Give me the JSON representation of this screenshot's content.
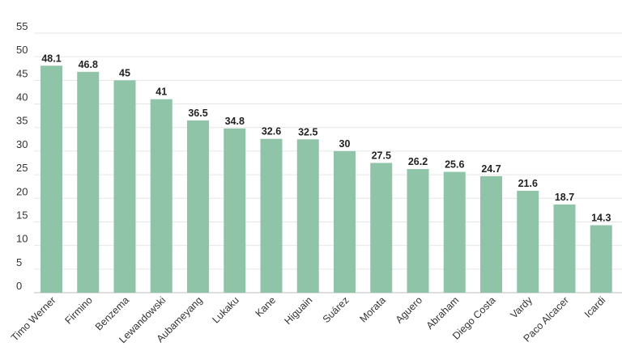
{
  "chart_data": {
    "type": "bar",
    "title": "",
    "xlabel": "",
    "ylabel": "",
    "ylim": [
      0,
      55
    ],
    "yticks": [
      0,
      5,
      10,
      15,
      20,
      25,
      30,
      35,
      40,
      45,
      50,
      55
    ],
    "grid": true,
    "categories": [
      "Timo Werner",
      "Firmino",
      "Benzema",
      "Lewandowski",
      "Aubameyang",
      "Lukaku",
      "Kane",
      "Higuain",
      "Suárez",
      "Morata",
      "Aguero",
      "Abraham",
      "Diego Costa",
      "Vardy",
      "Paco Alcacer",
      "Icardi"
    ],
    "values": [
      48.1,
      46.8,
      45,
      41,
      36.5,
      34.8,
      32.6,
      32.5,
      30,
      27.5,
      26.2,
      25.6,
      24.7,
      21.6,
      18.7,
      14.3
    ],
    "value_labels": [
      "48.1",
      "46.8",
      "45",
      "41",
      "36.5",
      "34.8",
      "32.6",
      "32.5",
      "30",
      "27.5",
      "26.2",
      "25.6",
      "24.7",
      "21.6",
      "18.7",
      "14.3"
    ],
    "colors": {
      "bar": "#8fc4a8",
      "grid": "#e6e6e6",
      "axis": "#bdbdbd",
      "tick_text": "#333333",
      "label_text": "#222222"
    }
  }
}
